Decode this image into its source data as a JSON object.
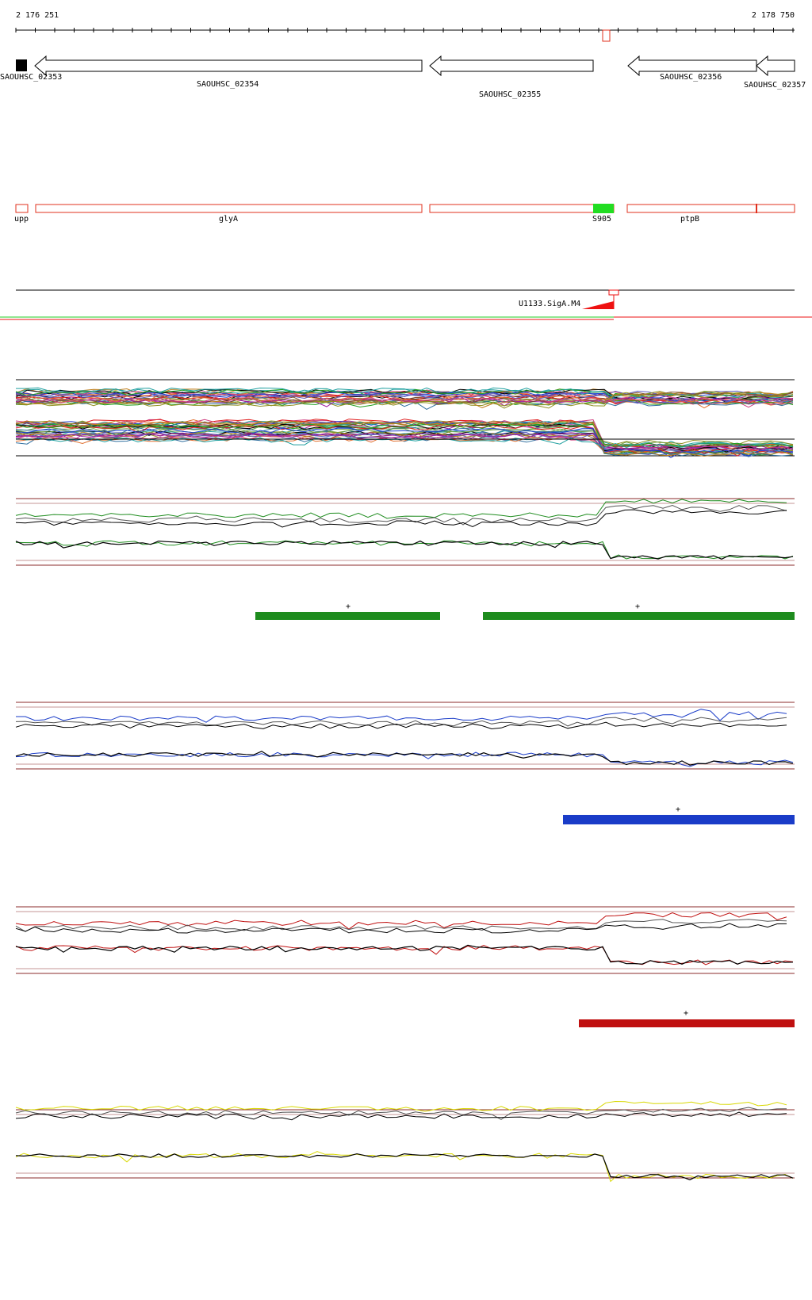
{
  "coords": {
    "start": "2 176 251",
    "end": "2 178 750"
  },
  "genes": [
    {
      "id": "g1",
      "label": "SAOUHSC_02353"
    },
    {
      "id": "g2",
      "label": "SAOUHSC_02354"
    },
    {
      "id": "g3",
      "label": "SAOUHSC_02355"
    },
    {
      "id": "g4",
      "label": "SAOUHSC_02356"
    },
    {
      "id": "g5",
      "label": "SAOUHSC_02357"
    }
  ],
  "operons": [
    "upp",
    "glyA",
    "S905",
    "ptpB"
  ],
  "promoter_label": "U1133.SigA.M4",
  "segments_sign": "+",
  "colors": {
    "gene_box": "#000000",
    "operon_box": "#e0301e",
    "highlight": "#22dd22",
    "promoter": "#ee1111",
    "green_track": "#1e8c1e",
    "blue_track": "#1a3cc8",
    "red_track": "#c01010",
    "yellow_track": "#d8d800",
    "guide": "#8b2b2b"
  }
}
